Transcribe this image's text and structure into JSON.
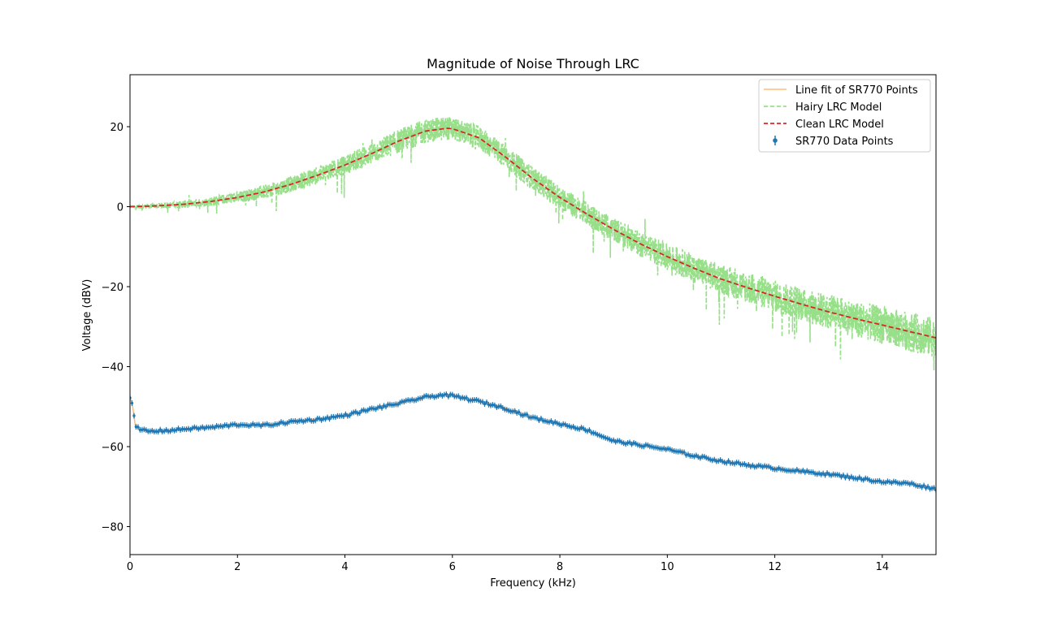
{
  "chart_data": {
    "type": "line",
    "title": "Magnitude of Noise Through LRC",
    "xlabel": "Frequency (kHz)",
    "ylabel": "Voltage (dBV)",
    "xlim": [
      0,
      15
    ],
    "ylim": [
      -87,
      33
    ],
    "xticks": [
      0,
      2,
      4,
      6,
      8,
      10,
      12,
      14
    ],
    "xtick_labels": [
      "0",
      "2",
      "4",
      "6",
      "8",
      "10",
      "12",
      "14"
    ],
    "yticks": [
      20,
      0,
      -20,
      -40,
      -60,
      -80
    ],
    "ytick_labels": [
      "20",
      "0",
      "−20",
      "−40",
      "−60",
      "−80"
    ],
    "grid": false,
    "legend_position": "top-right",
    "series": [
      {
        "name": "Line fit of SR770 Points",
        "style": "solid",
        "color": "#ffbb78",
        "x": [
          0,
          0.05,
          0.1,
          0.2,
          0.4,
          0.6,
          0.8,
          1.0,
          1.5,
          2.0,
          2.5,
          3.0,
          3.5,
          4.0,
          4.5,
          5.0,
          5.5,
          5.8,
          6.0,
          6.5,
          7.0,
          7.5,
          8.0,
          8.5,
          9.0,
          9.5,
          10.0,
          10.5,
          11.0,
          11.5,
          12.0,
          12.5,
          13.0,
          13.5,
          14.0,
          14.5,
          15.0
        ],
        "y": [
          -47.5,
          -50,
          -55,
          -55.8,
          -56.2,
          -56,
          -55.9,
          -55.6,
          -55.2,
          -54.5,
          -54.7,
          -53.8,
          -53.2,
          -52.2,
          -50.6,
          -49.2,
          -47.6,
          -47.1,
          -47.3,
          -48.7,
          -50.5,
          -52.8,
          -54.3,
          -55.8,
          -58.6,
          -59.6,
          -60.7,
          -62.3,
          -63.6,
          -64.6,
          -65.4,
          -66.2,
          -66.9,
          -67.8,
          -68.8,
          -69.2,
          -70.6
        ]
      },
      {
        "name": "Hairy LRC Model",
        "style": "dashed",
        "color": "#98df8a",
        "x_start": 0,
        "x_end": 15,
        "x_step": 0.00375,
        "noise_note": "noisy version of Clean LRC Model"
      },
      {
        "name": "Clean LRC Model",
        "style": "dashed",
        "color": "#d62728",
        "x": [
          0,
          0.5,
          1.0,
          1.5,
          2.0,
          2.5,
          3.0,
          3.5,
          4.0,
          4.5,
          5.0,
          5.5,
          5.9,
          6.0,
          6.5,
          7.0,
          7.5,
          8.0,
          8.5,
          9.0,
          9.5,
          10.0,
          10.5,
          11.0,
          11.5,
          12.0,
          12.5,
          13.0,
          13.5,
          14.0,
          14.5,
          15.0
        ],
        "y": [
          0,
          0.2,
          0.6,
          1.3,
          2.3,
          3.7,
          5.6,
          7.9,
          10.4,
          13.3,
          16.4,
          18.9,
          19.6,
          19.5,
          17.2,
          12.3,
          7.0,
          2.3,
          -1.8,
          -5.7,
          -9.3,
          -12.5,
          -15.4,
          -18.1,
          -20.3,
          -22.4,
          -24.4,
          -26.3,
          -28.0,
          -29.6,
          -31.2,
          -32.8
        ]
      },
      {
        "name": "SR770 Data Points",
        "style": "errorbar",
        "color": "#1f77b4",
        "x": [
          0,
          0.05,
          0.1,
          0.2,
          0.4,
          0.6,
          0.8,
          1.0,
          1.5,
          2.0,
          2.5,
          3.0,
          3.5,
          4.0,
          4.5,
          5.0,
          5.5,
          5.8,
          6.0,
          6.5,
          7.0,
          7.5,
          8.0,
          8.5,
          9.0,
          9.5,
          10.0,
          10.5,
          11.0,
          11.5,
          12.0,
          12.5,
          13.0,
          13.5,
          14.0,
          14.5,
          15.0
        ],
        "y": [
          -47.5,
          -50,
          -55,
          -55.8,
          -56.2,
          -56,
          -55.9,
          -55.6,
          -55.2,
          -54.5,
          -54.7,
          -53.8,
          -53.2,
          -52.2,
          -50.6,
          -49.2,
          -47.6,
          -47.1,
          -47.3,
          -48.7,
          -50.5,
          -52.8,
          -54.3,
          -55.8,
          -58.6,
          -59.6,
          -60.7,
          -62.3,
          -63.6,
          -64.6,
          -65.4,
          -66.2,
          -66.9,
          -67.8,
          -68.8,
          -69.2,
          -70.6
        ],
        "yerr": 0.7
      }
    ]
  }
}
